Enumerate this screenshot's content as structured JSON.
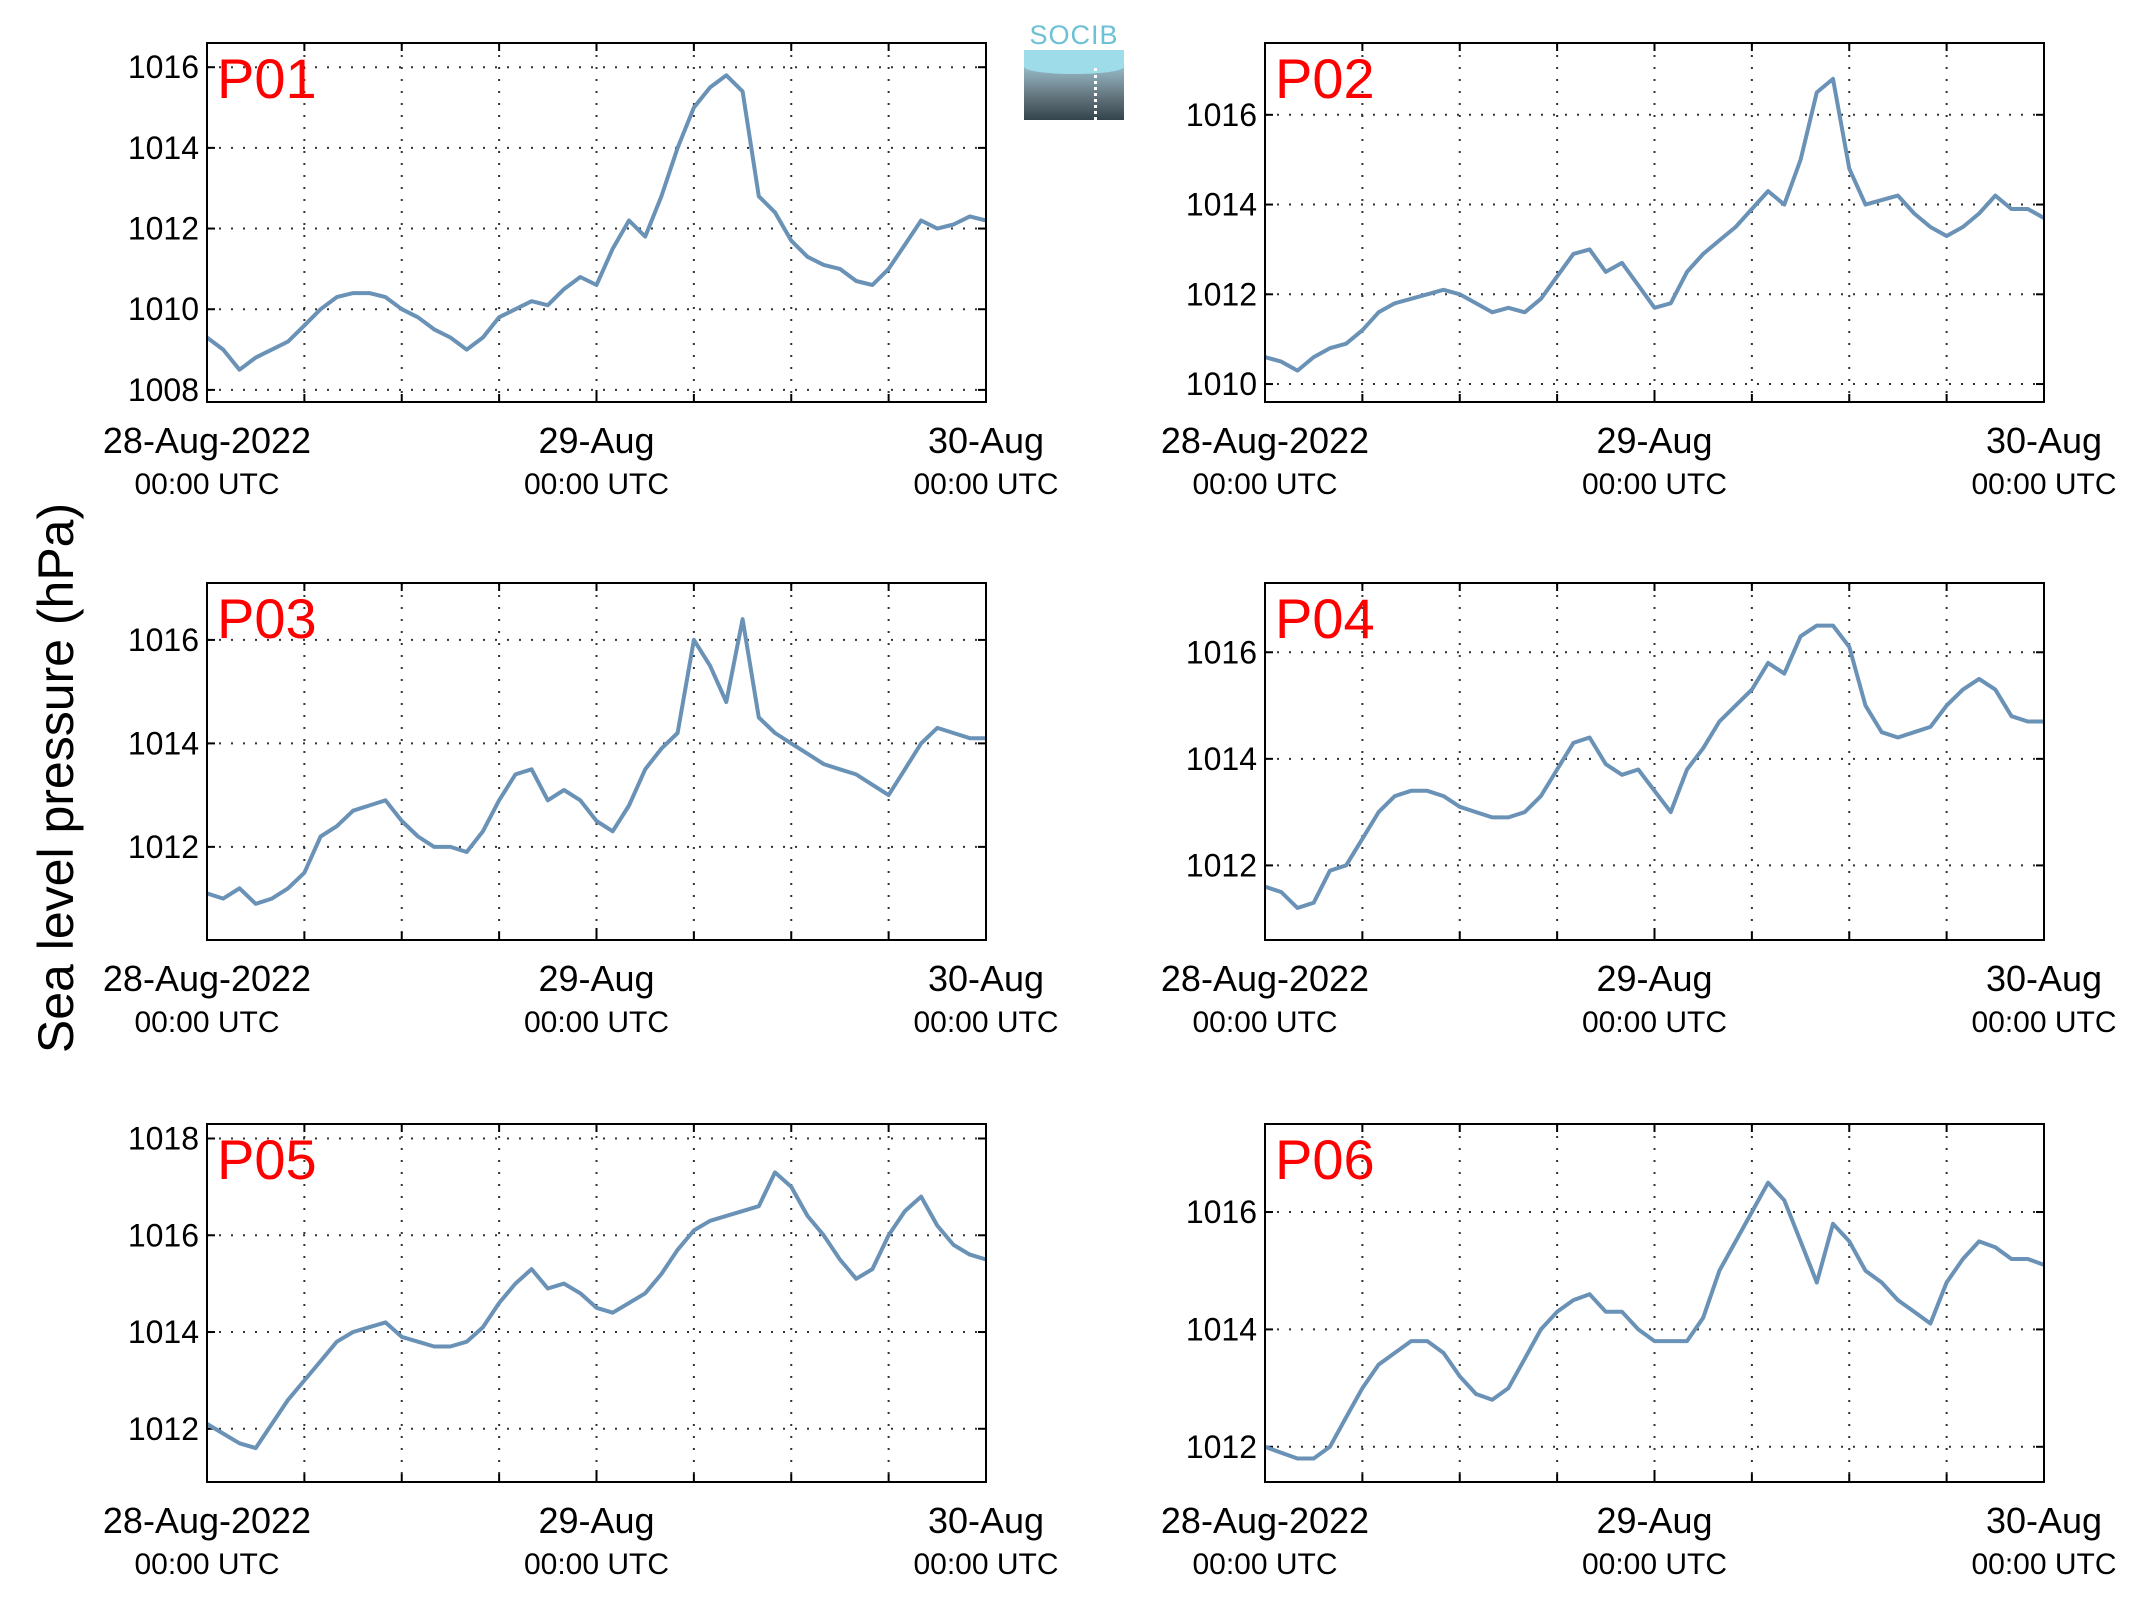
{
  "figure": {
    "ylabel": "Sea level pressure (hPa)",
    "logo_text": "SOCIB",
    "line_color": "#6a92b6",
    "label_color": "#ff0000"
  },
  "x_ticks": [
    {
      "line1": "28-Aug-2022",
      "line2": "00:00 UTC",
      "hour": 0
    },
    {
      "line1": "29-Aug",
      "line2": "00:00 UTC",
      "hour": 24
    },
    {
      "line1": "30-Aug",
      "line2": "00:00 UTC",
      "hour": 48
    }
  ],
  "chart_data": [
    {
      "type": "line",
      "label": "P01",
      "xlim_hours": [
        0,
        48
      ],
      "ylim": [
        1007.7,
        1016.6
      ],
      "yticks": [
        1008,
        1010,
        1012,
        1014,
        1016
      ],
      "grid": true,
      "x": [
        0,
        1,
        2,
        3,
        4,
        5,
        6,
        7,
        8,
        9,
        10,
        11,
        12,
        13,
        14,
        15,
        16,
        17,
        18,
        19,
        20,
        21,
        22,
        23,
        24,
        25,
        26,
        27,
        28,
        29,
        30,
        31,
        32,
        33,
        34,
        35,
        36,
        37,
        38,
        39,
        40,
        41,
        42,
        43,
        44,
        45,
        46,
        47,
        48
      ],
      "y": [
        1009.3,
        1009.0,
        1008.5,
        1008.8,
        1009.0,
        1009.2,
        1009.6,
        1010.0,
        1010.3,
        1010.4,
        1010.4,
        1010.3,
        1010.0,
        1009.8,
        1009.5,
        1009.3,
        1009.0,
        1009.3,
        1009.8,
        1010.0,
        1010.2,
        1010.1,
        1010.5,
        1010.8,
        1010.6,
        1011.5,
        1012.2,
        1011.8,
        1012.8,
        1014.0,
        1015.0,
        1015.5,
        1015.8,
        1015.4,
        1012.8,
        1012.4,
        1011.7,
        1011.3,
        1011.1,
        1011.0,
        1010.7,
        1010.6,
        1011.0,
        1011.6,
        1012.2,
        1012.0,
        1012.1,
        1012.3,
        1012.2
      ]
    },
    {
      "type": "line",
      "label": "P02",
      "xlim_hours": [
        0,
        48
      ],
      "ylim": [
        1009.6,
        1017.6
      ],
      "yticks": [
        1010,
        1012,
        1014,
        1016
      ],
      "grid": true,
      "x": [
        0,
        1,
        2,
        3,
        4,
        5,
        6,
        7,
        8,
        9,
        10,
        11,
        12,
        13,
        14,
        15,
        16,
        17,
        18,
        19,
        20,
        21,
        22,
        23,
        24,
        25,
        26,
        27,
        28,
        29,
        30,
        31,
        32,
        33,
        34,
        35,
        36,
        37,
        38,
        39,
        40,
        41,
        42,
        43,
        44,
        45,
        46,
        47,
        48
      ],
      "y": [
        1010.6,
        1010.5,
        1010.3,
        1010.6,
        1010.8,
        1010.9,
        1011.2,
        1011.6,
        1011.8,
        1011.9,
        1012.0,
        1012.1,
        1012.0,
        1011.8,
        1011.6,
        1011.7,
        1011.6,
        1011.9,
        1012.4,
        1012.9,
        1013.0,
        1012.5,
        1012.7,
        1012.2,
        1011.7,
        1011.8,
        1012.5,
        1012.9,
        1013.2,
        1013.5,
        1013.9,
        1014.3,
        1014.0,
        1015.0,
        1016.5,
        1016.8,
        1014.8,
        1014.0,
        1014.1,
        1014.2,
        1013.8,
        1013.5,
        1013.3,
        1013.5,
        1013.8,
        1014.2,
        1013.9,
        1013.9,
        1013.7
      ]
    },
    {
      "type": "line",
      "label": "P03",
      "xlim_hours": [
        0,
        48
      ],
      "ylim": [
        1010.2,
        1017.1
      ],
      "yticks": [
        1012,
        1014,
        1016
      ],
      "grid": true,
      "x": [
        0,
        1,
        2,
        3,
        4,
        5,
        6,
        7,
        8,
        9,
        10,
        11,
        12,
        13,
        14,
        15,
        16,
        17,
        18,
        19,
        20,
        21,
        22,
        23,
        24,
        25,
        26,
        27,
        28,
        29,
        30,
        31,
        32,
        33,
        34,
        35,
        36,
        37,
        38,
        39,
        40,
        41,
        42,
        43,
        44,
        45,
        46,
        47,
        48
      ],
      "y": [
        1011.1,
        1011.0,
        1011.2,
        1010.9,
        1011.0,
        1011.2,
        1011.5,
        1012.2,
        1012.4,
        1012.7,
        1012.8,
        1012.9,
        1012.5,
        1012.2,
        1012.0,
        1012.0,
        1011.9,
        1012.3,
        1012.9,
        1013.4,
        1013.5,
        1012.9,
        1013.1,
        1012.9,
        1012.5,
        1012.3,
        1012.8,
        1013.5,
        1013.9,
        1014.2,
        1016.0,
        1015.5,
        1014.8,
        1016.4,
        1014.5,
        1014.2,
        1014.0,
        1013.8,
        1013.6,
        1013.5,
        1013.4,
        1013.2,
        1013.0,
        1013.5,
        1014.0,
        1014.3,
        1014.2,
        1014.1,
        1014.1
      ]
    },
    {
      "type": "line",
      "label": "P04",
      "xlim_hours": [
        0,
        48
      ],
      "ylim": [
        1010.6,
        1017.3
      ],
      "yticks": [
        1012,
        1014,
        1016
      ],
      "grid": true,
      "x": [
        0,
        1,
        2,
        3,
        4,
        5,
        6,
        7,
        8,
        9,
        10,
        11,
        12,
        13,
        14,
        15,
        16,
        17,
        18,
        19,
        20,
        21,
        22,
        23,
        24,
        25,
        26,
        27,
        28,
        29,
        30,
        31,
        32,
        33,
        34,
        35,
        36,
        37,
        38,
        39,
        40,
        41,
        42,
        43,
        44,
        45,
        46,
        47,
        48
      ],
      "y": [
        1011.6,
        1011.5,
        1011.2,
        1011.3,
        1011.9,
        1012.0,
        1012.5,
        1013.0,
        1013.3,
        1013.4,
        1013.4,
        1013.3,
        1013.1,
        1013.0,
        1012.9,
        1012.9,
        1013.0,
        1013.3,
        1013.8,
        1014.3,
        1014.4,
        1013.9,
        1013.7,
        1013.8,
        1013.4,
        1013.0,
        1013.8,
        1014.2,
        1014.7,
        1015.0,
        1015.3,
        1015.8,
        1015.6,
        1016.3,
        1016.5,
        1016.5,
        1016.1,
        1015.0,
        1014.5,
        1014.4,
        1014.5,
        1014.6,
        1015.0,
        1015.3,
        1015.5,
        1015.3,
        1014.8,
        1014.7,
        1014.7
      ]
    },
    {
      "type": "line",
      "label": "P05",
      "xlim_hours": [
        0,
        48
      ],
      "ylim": [
        1010.9,
        1018.3
      ],
      "yticks": [
        1012,
        1014,
        1016,
        1018
      ],
      "grid": true,
      "x": [
        0,
        1,
        2,
        3,
        4,
        5,
        6,
        7,
        8,
        9,
        10,
        11,
        12,
        13,
        14,
        15,
        16,
        17,
        18,
        19,
        20,
        21,
        22,
        23,
        24,
        25,
        26,
        27,
        28,
        29,
        30,
        31,
        32,
        33,
        34,
        35,
        36,
        37,
        38,
        39,
        40,
        41,
        42,
        43,
        44,
        45,
        46,
        47,
        48
      ],
      "y": [
        1012.1,
        1011.9,
        1011.7,
        1011.6,
        1012.1,
        1012.6,
        1013.0,
        1013.4,
        1013.8,
        1014.0,
        1014.1,
        1014.2,
        1013.9,
        1013.8,
        1013.7,
        1013.7,
        1013.8,
        1014.1,
        1014.6,
        1015.0,
        1015.3,
        1014.9,
        1015.0,
        1014.8,
        1014.5,
        1014.4,
        1014.6,
        1014.8,
        1015.2,
        1015.7,
        1016.1,
        1016.3,
        1016.4,
        1016.5,
        1016.6,
        1017.3,
        1017.0,
        1016.4,
        1016.0,
        1015.5,
        1015.1,
        1015.3,
        1016.0,
        1016.5,
        1016.8,
        1016.2,
        1015.8,
        1015.6,
        1015.5
      ]
    },
    {
      "type": "line",
      "label": "P06",
      "xlim_hours": [
        0,
        48
      ],
      "ylim": [
        1011.4,
        1017.5
      ],
      "yticks": [
        1012,
        1014,
        1016
      ],
      "grid": true,
      "x": [
        0,
        1,
        2,
        3,
        4,
        5,
        6,
        7,
        8,
        9,
        10,
        11,
        12,
        13,
        14,
        15,
        16,
        17,
        18,
        19,
        20,
        21,
        22,
        23,
        24,
        25,
        26,
        27,
        28,
        29,
        30,
        31,
        32,
        33,
        34,
        35,
        36,
        37,
        38,
        39,
        40,
        41,
        42,
        43,
        44,
        45,
        46,
        47,
        48
      ],
      "y": [
        1012.0,
        1011.9,
        1011.8,
        1011.8,
        1012.0,
        1012.5,
        1013.0,
        1013.4,
        1013.6,
        1013.8,
        1013.8,
        1013.6,
        1013.2,
        1012.9,
        1012.8,
        1013.0,
        1013.5,
        1014.0,
        1014.3,
        1014.5,
        1014.6,
        1014.3,
        1014.3,
        1014.0,
        1013.8,
        1013.8,
        1013.8,
        1014.2,
        1015.0,
        1015.5,
        1016.0,
        1016.5,
        1016.2,
        1015.5,
        1014.8,
        1015.8,
        1015.5,
        1015.0,
        1014.8,
        1014.5,
        1014.3,
        1014.1,
        1014.8,
        1015.2,
        1015.5,
        1015.4,
        1015.2,
        1015.2,
        1015.1
      ]
    }
  ]
}
